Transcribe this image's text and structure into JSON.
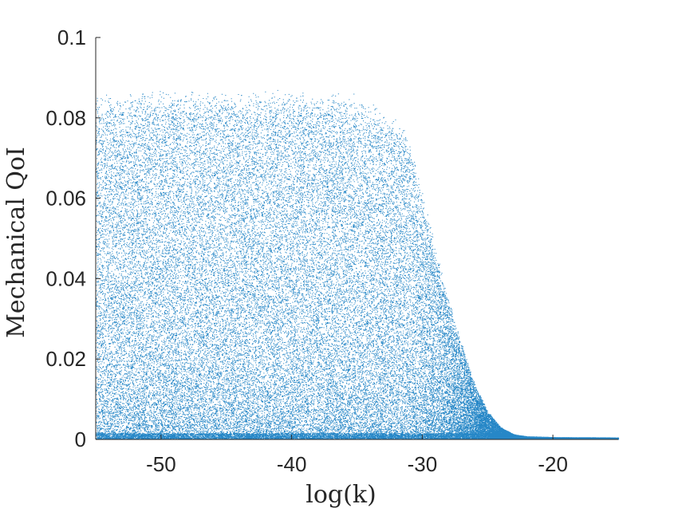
{
  "chart_data": {
    "type": "scatter",
    "title": "",
    "xlabel": "log(k)",
    "ylabel": "Mechanical QoI",
    "xlim": [
      -55,
      -15
    ],
    "ylim": [
      0,
      0.1
    ],
    "xticks": [
      -50,
      -40,
      -30,
      -20
    ],
    "xtick_labels": [
      "-50",
      "-40",
      "-30",
      "-20"
    ],
    "yticks": [
      0,
      0.02,
      0.04,
      0.06,
      0.08,
      0.1
    ],
    "ytick_labels": [
      "0",
      "0.02",
      "0.04",
      "0.06",
      "0.08",
      "0.1"
    ],
    "grid": false,
    "legend": "none",
    "marker_color": "#0072BD",
    "envelope": {
      "description_x": [
        -55,
        -50,
        -45,
        -40,
        -35,
        -32,
        -31,
        -30,
        -29,
        -28,
        -27,
        -26,
        -25,
        -24,
        -23,
        -22,
        -20,
        -15
      ],
      "upper_y": [
        0.086,
        0.087,
        0.087,
        0.087,
        0.086,
        0.08,
        0.075,
        0.062,
        0.048,
        0.035,
        0.024,
        0.014,
        0.007,
        0.003,
        0.0012,
        0.0007,
        0.0005,
        0.0004
      ]
    }
  }
}
